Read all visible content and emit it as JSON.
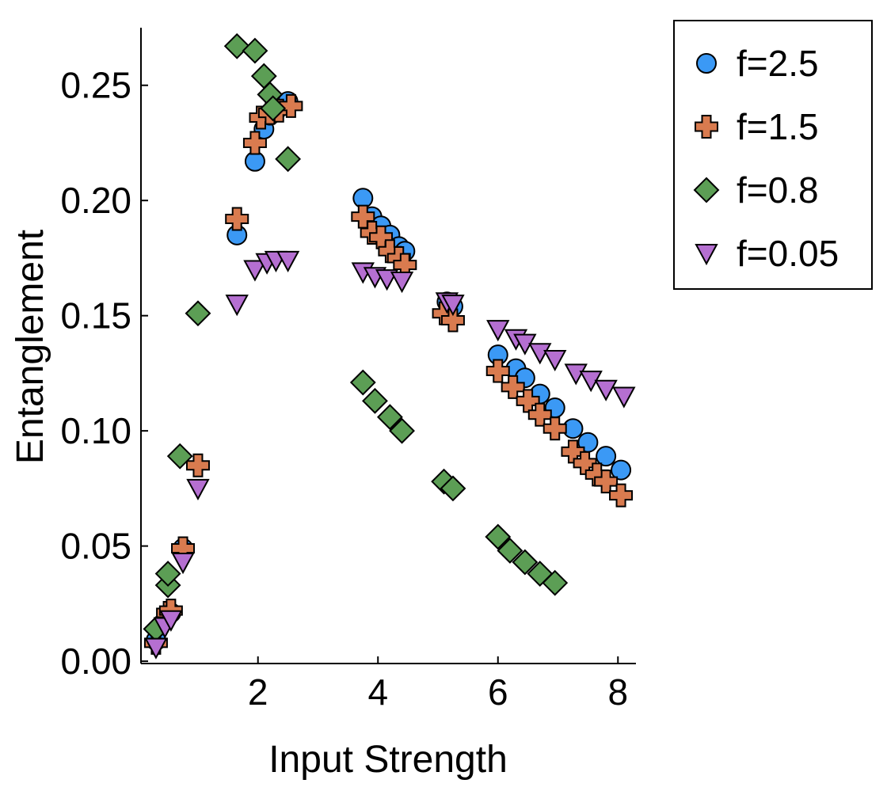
{
  "chart_data": {
    "type": "scatter",
    "title": "",
    "xlabel": "Input Strength",
    "ylabel": "Entanglement",
    "xlim": [
      0.05,
      8.3
    ],
    "ylim": [
      -0.001,
      0.275
    ],
    "xticks": [
      2,
      4,
      6,
      8
    ],
    "xtick_labels": [
      "2",
      "4",
      "6",
      "8"
    ],
    "yticks": [
      0.0,
      0.05,
      0.1,
      0.15,
      0.2,
      0.25
    ],
    "ytick_labels": [
      "0.00",
      "0.05",
      "0.10",
      "0.15",
      "0.20",
      "0.25"
    ],
    "grid": false,
    "legend_position": "top-right outside",
    "series": [
      {
        "name": "f=2.5",
        "marker": "circle",
        "color": "#3b99f5",
        "points": [
          [
            0.3,
            0.009
          ],
          [
            0.5,
            0.02
          ],
          [
            0.55,
            0.021
          ],
          [
            0.75,
            0.049
          ],
          [
            1.65,
            0.185
          ],
          [
            1.95,
            0.217
          ],
          [
            2.1,
            0.231
          ],
          [
            2.2,
            0.237
          ],
          [
            2.3,
            0.239
          ],
          [
            2.5,
            0.243
          ],
          [
            3.75,
            0.201
          ],
          [
            3.9,
            0.193
          ],
          [
            4.05,
            0.189
          ],
          [
            4.2,
            0.185
          ],
          [
            4.35,
            0.18
          ],
          [
            4.45,
            0.178
          ],
          [
            5.15,
            0.156
          ],
          [
            5.25,
            0.154
          ],
          [
            6.0,
            0.133
          ],
          [
            6.3,
            0.127
          ],
          [
            6.45,
            0.123
          ],
          [
            6.7,
            0.116
          ],
          [
            6.95,
            0.11
          ],
          [
            7.25,
            0.101
          ],
          [
            7.5,
            0.095
          ],
          [
            7.8,
            0.089
          ],
          [
            8.05,
            0.083
          ]
        ]
      },
      {
        "name": "f=1.5",
        "marker": "plus",
        "color": "#d97b4f",
        "points": [
          [
            0.3,
            0.008
          ],
          [
            0.5,
            0.021
          ],
          [
            0.55,
            0.022
          ],
          [
            0.75,
            0.049
          ],
          [
            1.0,
            0.085
          ],
          [
            1.65,
            0.192
          ],
          [
            1.95,
            0.225
          ],
          [
            2.05,
            0.236
          ],
          [
            2.2,
            0.238
          ],
          [
            2.35,
            0.239
          ],
          [
            2.55,
            0.241
          ],
          [
            3.75,
            0.193
          ],
          [
            3.9,
            0.186
          ],
          [
            4.05,
            0.184
          ],
          [
            4.2,
            0.178
          ],
          [
            4.35,
            0.175
          ],
          [
            4.45,
            0.172
          ],
          [
            5.1,
            0.151
          ],
          [
            5.25,
            0.148
          ],
          [
            6.0,
            0.126
          ],
          [
            6.25,
            0.119
          ],
          [
            6.5,
            0.113
          ],
          [
            6.7,
            0.107
          ],
          [
            6.95,
            0.101
          ],
          [
            7.25,
            0.091
          ],
          [
            7.45,
            0.086
          ],
          [
            7.65,
            0.081
          ],
          [
            7.8,
            0.078
          ],
          [
            8.05,
            0.072
          ]
        ]
      },
      {
        "name": "f=0.8",
        "marker": "diamond",
        "color": "#5c9e55",
        "points": [
          [
            0.3,
            0.014
          ],
          [
            0.5,
            0.033
          ],
          [
            0.5,
            0.038
          ],
          [
            0.7,
            0.089
          ],
          [
            1.0,
            0.151
          ],
          [
            1.65,
            0.267
          ],
          [
            1.95,
            0.265
          ],
          [
            2.1,
            0.254
          ],
          [
            2.2,
            0.246
          ],
          [
            2.25,
            0.24
          ],
          [
            2.5,
            0.218
          ],
          [
            3.75,
            0.121
          ],
          [
            3.95,
            0.113
          ],
          [
            4.2,
            0.106
          ],
          [
            4.4,
            0.1
          ],
          [
            5.1,
            0.078
          ],
          [
            5.25,
            0.075
          ],
          [
            6.0,
            0.054
          ],
          [
            6.2,
            0.048
          ],
          [
            6.45,
            0.043
          ],
          [
            6.7,
            0.038
          ],
          [
            6.95,
            0.034
          ]
        ]
      },
      {
        "name": "f=0.05",
        "marker": "triangle-down",
        "color": "#b56fd1",
        "points": [
          [
            0.3,
            0.006
          ],
          [
            0.45,
            0.015
          ],
          [
            0.55,
            0.018
          ],
          [
            0.75,
            0.043
          ],
          [
            1.0,
            0.075
          ],
          [
            1.65,
            0.155
          ],
          [
            1.95,
            0.17
          ],
          [
            2.15,
            0.173
          ],
          [
            2.3,
            0.174
          ],
          [
            2.5,
            0.174
          ],
          [
            3.75,
            0.169
          ],
          [
            3.95,
            0.167
          ],
          [
            4.15,
            0.166
          ],
          [
            4.4,
            0.165
          ],
          [
            5.15,
            0.156
          ],
          [
            5.25,
            0.155
          ],
          [
            6.0,
            0.144
          ],
          [
            6.3,
            0.14
          ],
          [
            6.45,
            0.138
          ],
          [
            6.7,
            0.134
          ],
          [
            6.95,
            0.131
          ],
          [
            7.3,
            0.125
          ],
          [
            7.55,
            0.122
          ],
          [
            7.8,
            0.118
          ],
          [
            8.1,
            0.115
          ]
        ]
      }
    ]
  }
}
